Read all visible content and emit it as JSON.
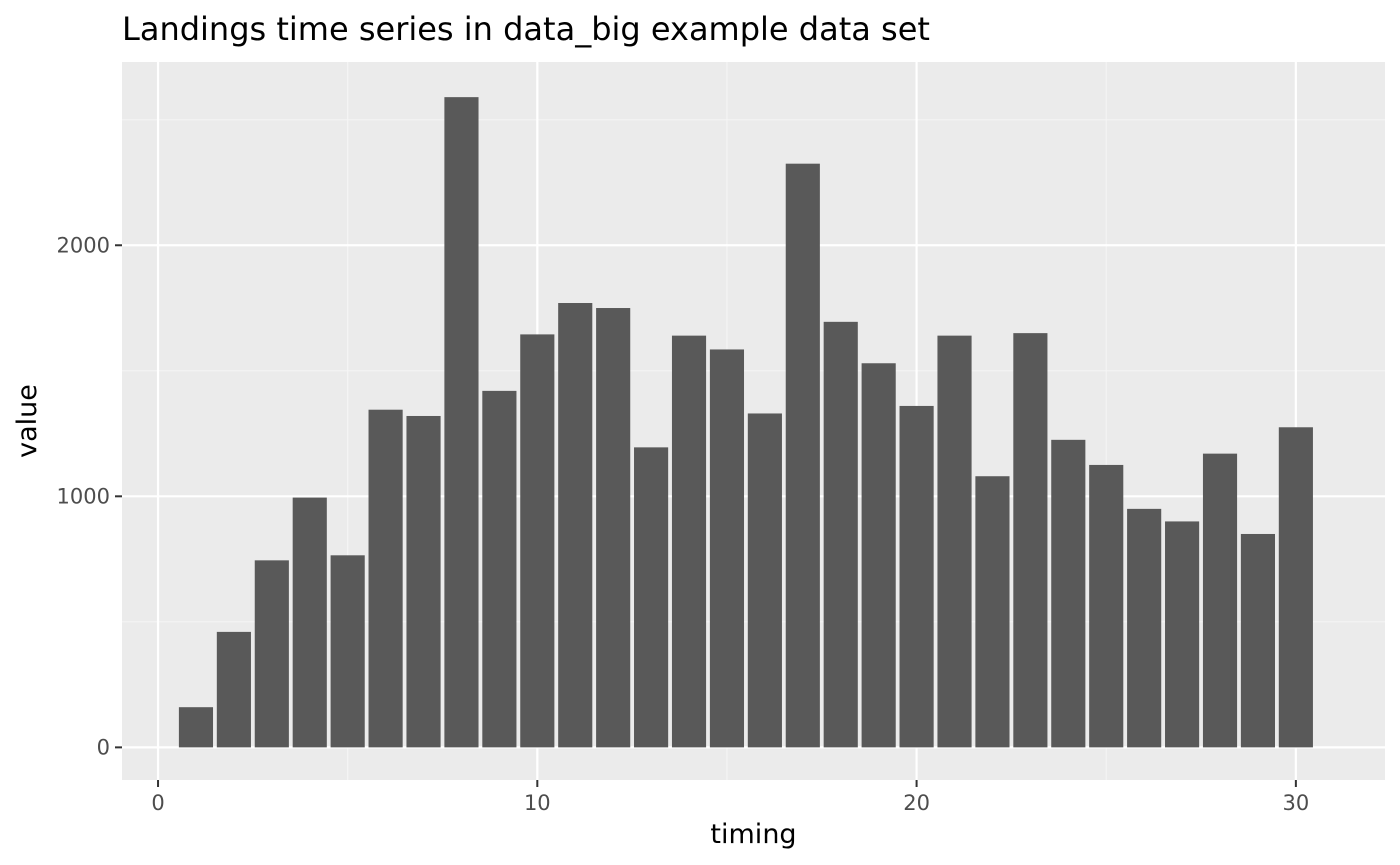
{
  "colors": {
    "panel_background": "#ebebeb",
    "grid_major": "#ffffff",
    "grid_minor": "#f5f5f5",
    "bar_fill": "#595959",
    "tick_color": "#333333",
    "tick_label_color": "#4d4d4d"
  },
  "chart_data": {
    "type": "bar",
    "title": "Landings time series in data_big example data set",
    "xlabel": "timing",
    "ylabel": "value",
    "x": [
      1,
      2,
      3,
      4,
      5,
      6,
      7,
      8,
      9,
      10,
      11,
      12,
      13,
      14,
      15,
      16,
      17,
      18,
      19,
      20,
      21,
      22,
      23,
      24,
      25,
      26,
      27,
      28,
      29,
      30
    ],
    "values": [
      160,
      460,
      745,
      995,
      765,
      1345,
      1320,
      2590,
      1420,
      1645,
      1770,
      1750,
      1195,
      1640,
      1585,
      1330,
      2325,
      1695,
      1530,
      1360,
      1640,
      1080,
      1650,
      1225,
      1125,
      950,
      900,
      1170,
      850,
      1275
    ],
    "xlim": [
      -0.95,
      32.35
    ],
    "ylim": [
      -130,
      2730
    ],
    "x_ticks": [
      0,
      10,
      20,
      30
    ],
    "x_tick_labels": [
      "0",
      "10",
      "20",
      "30"
    ],
    "y_ticks": [
      0,
      1000,
      2000
    ],
    "y_tick_labels": [
      "0",
      "1000",
      "2000"
    ],
    "x_minor_ticks": [
      5,
      15,
      25
    ],
    "y_minor_ticks": [
      500,
      1500,
      2500
    ],
    "bar_width": 0.9,
    "grid": true,
    "legend": "none"
  }
}
